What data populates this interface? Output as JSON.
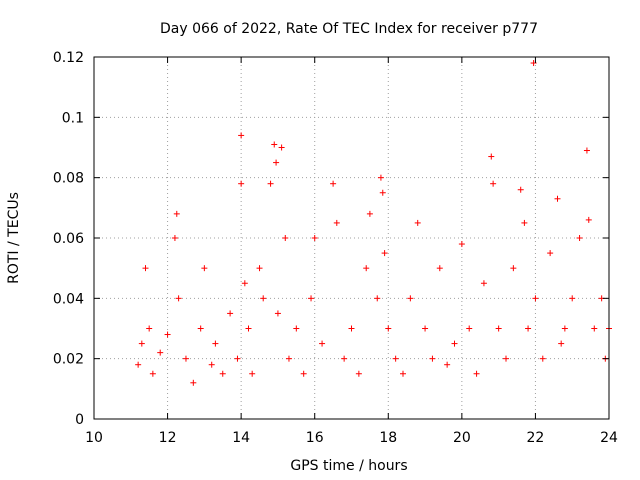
{
  "chart_data": {
    "type": "scatter",
    "title": "Day 066 of 2022, Rate Of TEC Index for receiver p777",
    "xlabel": "GPS time / hours",
    "ylabel": "ROTI / TECUs",
    "xlim": [
      10,
      24
    ],
    "ylim": [
      0,
      0.12
    ],
    "xticks": [
      10,
      12,
      14,
      16,
      18,
      20,
      22,
      24
    ],
    "yticks": [
      0,
      0.02,
      0.04,
      0.06,
      0.08,
      0.1,
      0.12
    ],
    "xtick_labels": [
      "10",
      "12",
      "14",
      "16",
      "18",
      "20",
      "22",
      "24"
    ],
    "ytick_labels": [
      "0",
      "0.02",
      "0.04",
      "0.06",
      "0.08",
      "0.1",
      "0.12"
    ],
    "grid": true,
    "marker": "+",
    "marker_color": "#ff0000",
    "series": [
      {
        "name": "ROTI",
        "x": [
          11.2,
          11.3,
          11.4,
          11.5,
          11.6,
          11.8,
          12.0,
          12.2,
          12.25,
          12.3,
          12.5,
          12.7,
          12.9,
          13.0,
          13.2,
          13.3,
          13.5,
          13.7,
          13.9,
          14.0,
          14.0,
          14.1,
          14.2,
          14.3,
          14.5,
          14.6,
          14.8,
          14.9,
          14.95,
          15.0,
          15.1,
          15.2,
          15.3,
          15.5,
          15.7,
          15.9,
          16.0,
          16.2,
          16.5,
          16.6,
          16.8,
          17.0,
          17.2,
          17.4,
          17.5,
          17.7,
          17.8,
          17.85,
          17.9,
          18.0,
          18.2,
          18.4,
          18.6,
          18.8,
          19.0,
          19.2,
          19.4,
          19.6,
          19.8,
          20.0,
          20.2,
          20.4,
          20.6,
          20.8,
          20.85,
          21.0,
          21.2,
          21.4,
          21.6,
          21.7,
          21.8,
          21.95,
          22.0,
          22.2,
          22.4,
          22.6,
          22.7,
          22.8,
          23.0,
          23.2,
          23.4,
          23.45,
          23.6,
          23.8,
          23.9,
          24.0
        ],
        "y": [
          0.018,
          0.025,
          0.05,
          0.03,
          0.015,
          0.022,
          0.028,
          0.06,
          0.068,
          0.04,
          0.02,
          0.012,
          0.03,
          0.05,
          0.018,
          0.025,
          0.015,
          0.035,
          0.02,
          0.094,
          0.078,
          0.045,
          0.03,
          0.015,
          0.05,
          0.04,
          0.078,
          0.091,
          0.085,
          0.035,
          0.09,
          0.06,
          0.02,
          0.03,
          0.015,
          0.04,
          0.06,
          0.025,
          0.078,
          0.065,
          0.02,
          0.03,
          0.015,
          0.05,
          0.068,
          0.04,
          0.08,
          0.075,
          0.055,
          0.03,
          0.02,
          0.015,
          0.04,
          0.065,
          0.03,
          0.02,
          0.05,
          0.018,
          0.025,
          0.058,
          0.03,
          0.015,
          0.045,
          0.087,
          0.078,
          0.03,
          0.02,
          0.05,
          0.076,
          0.065,
          0.03,
          0.118,
          0.04,
          0.02,
          0.055,
          0.073,
          0.025,
          0.03,
          0.04,
          0.06,
          0.089,
          0.066,
          0.03,
          0.04,
          0.02,
          0.03
        ]
      }
    ]
  }
}
